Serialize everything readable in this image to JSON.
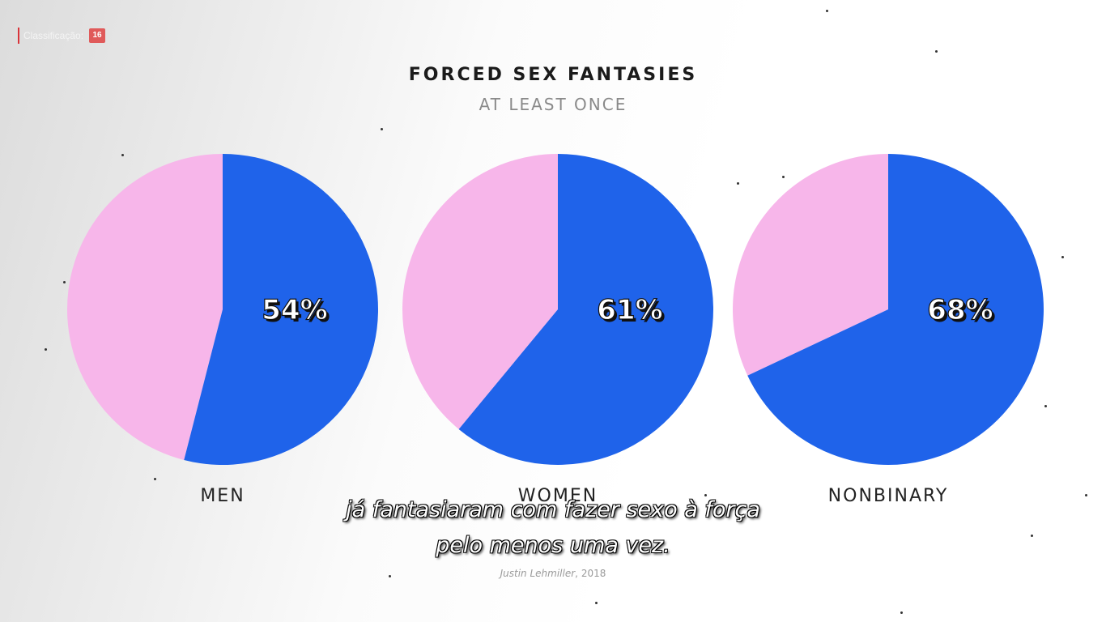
{
  "rating": {
    "label": "Classificação:",
    "value": "16"
  },
  "chart_data": {
    "type": "pie",
    "title": "FORCED SEX FANTASIES",
    "subtitle": "AT LEAST ONCE",
    "charts": [
      {
        "label": "MEN",
        "value": 54,
        "value_label": "54%"
      },
      {
        "label": "WOMEN",
        "value": 61,
        "value_label": "61%"
      },
      {
        "label": "NONBINARY",
        "value": 68,
        "value_label": "68%"
      }
    ],
    "colors": {
      "highlight": "#1f63ea",
      "remainder": "#f7b6ea"
    },
    "source": {
      "author": "Justin Lehmiller",
      "year": "2018"
    }
  },
  "subtitles": {
    "line1": "já fantasiaram com fazer sexo à força",
    "line2": "pelo menos uma vez."
  }
}
